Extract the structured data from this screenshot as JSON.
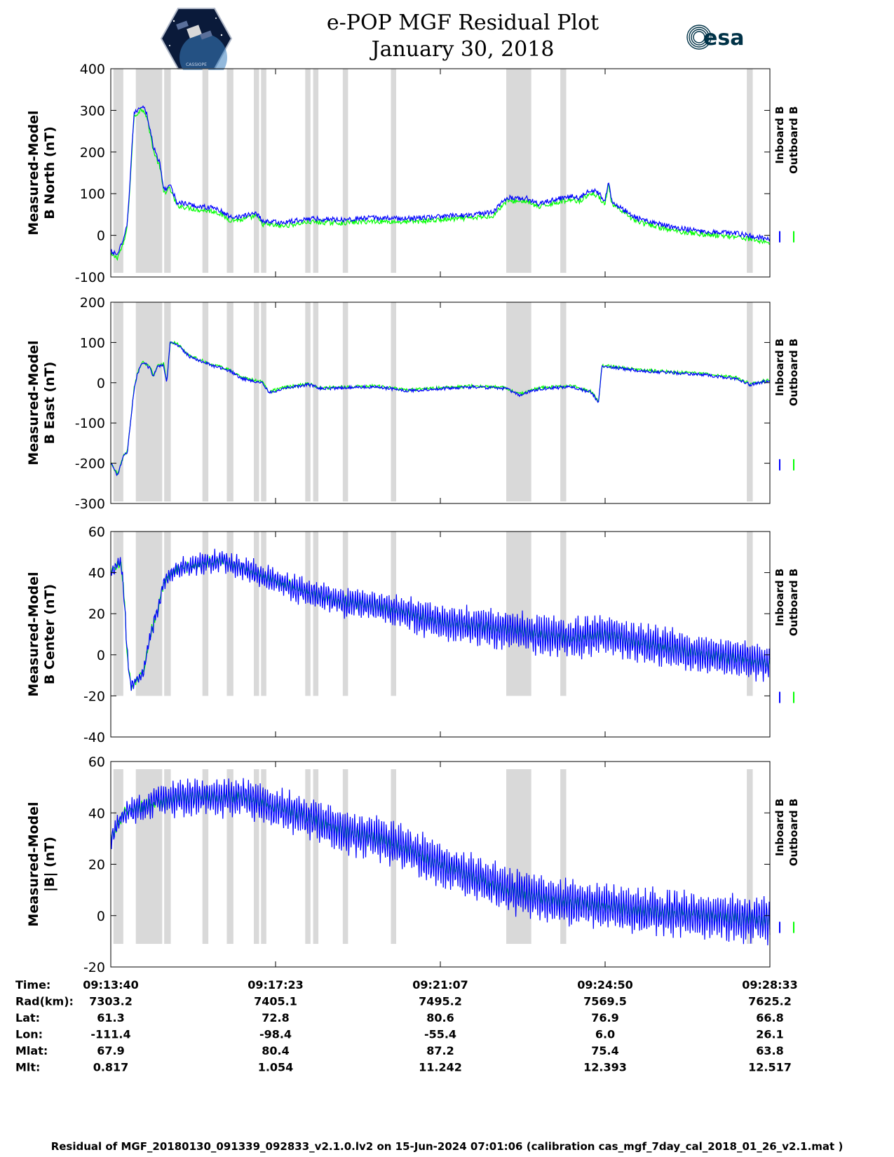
{
  "header": {
    "title": "e-POP MGF Residual Plot",
    "date": "January 30, 2018",
    "left_logo": "cassiope-mission-logo",
    "left_logo_text": "CASSIOPE",
    "right_logo": "esa-logo",
    "right_logo_text": "esa"
  },
  "colors": {
    "inboard": "#0000ff",
    "outboard": "#00ff00",
    "shade": "#d9d9d9"
  },
  "chart_data": {
    "type": "line",
    "x_range": [
      0,
      1
    ],
    "x_ticks": [
      0,
      0.25,
      0.5,
      0.75,
      1.0
    ],
    "shaded_intervals": [
      [
        0.004,
        0.019
      ],
      [
        0.038,
        0.078
      ],
      [
        0.081,
        0.091
      ],
      [
        0.139,
        0.148
      ],
      [
        0.176,
        0.186
      ],
      [
        0.217,
        0.225
      ],
      [
        0.228,
        0.236
      ],
      [
        0.295,
        0.303
      ],
      [
        0.307,
        0.315
      ],
      [
        0.352,
        0.36
      ],
      [
        0.425,
        0.433
      ],
      [
        0.6,
        0.638
      ],
      [
        0.682,
        0.691
      ],
      [
        0.965,
        0.974
      ]
    ],
    "legend": [
      "Inboard B",
      "Outboard B"
    ],
    "panels": [
      {
        "ylabel_1": "Measured-Model",
        "ylabel_2": "B North (nT)",
        "ylim": [
          -100,
          400
        ],
        "yticks": [
          -100,
          0,
          100,
          200,
          300,
          400
        ],
        "shade_range": [
          -90,
          400
        ],
        "noise": 6,
        "outboard_offset": -8,
        "curve": [
          [
            0,
            -40
          ],
          [
            0.01,
            -45
          ],
          [
            0.02,
            -10
          ],
          [
            0.025,
            30
          ],
          [
            0.03,
            150
          ],
          [
            0.035,
            290
          ],
          [
            0.045,
            310
          ],
          [
            0.05,
            310
          ],
          [
            0.055,
            290
          ],
          [
            0.065,
            210
          ],
          [
            0.075,
            170
          ],
          [
            0.08,
            110
          ],
          [
            0.09,
            120
          ],
          [
            0.1,
            80
          ],
          [
            0.13,
            70
          ],
          [
            0.16,
            65
          ],
          [
            0.18,
            45
          ],
          [
            0.2,
            45
          ],
          [
            0.22,
            55
          ],
          [
            0.23,
            35
          ],
          [
            0.26,
            30
          ],
          [
            0.3,
            40
          ],
          [
            0.35,
            38
          ],
          [
            0.4,
            42
          ],
          [
            0.45,
            40
          ],
          [
            0.5,
            45
          ],
          [
            0.55,
            50
          ],
          [
            0.58,
            55
          ],
          [
            0.6,
            90
          ],
          [
            0.63,
            90
          ],
          [
            0.65,
            75
          ],
          [
            0.67,
            85
          ],
          [
            0.7,
            95
          ],
          [
            0.71,
            90
          ],
          [
            0.72,
            100
          ],
          [
            0.73,
            110
          ],
          [
            0.74,
            100
          ],
          [
            0.75,
            85
          ],
          [
            0.755,
            130
          ],
          [
            0.76,
            85
          ],
          [
            0.77,
            70
          ],
          [
            0.8,
            40
          ],
          [
            0.85,
            20
          ],
          [
            0.9,
            10
          ],
          [
            0.95,
            5
          ],
          [
            1.0,
            -10
          ]
        ]
      },
      {
        "ylabel_1": "Measured-Model",
        "ylabel_2": "B East (nT)",
        "ylim": [
          -300,
          200
        ],
        "yticks": [
          -300,
          -200,
          -100,
          0,
          100,
          200
        ],
        "shade_range": [
          -295,
          200
        ],
        "noise": 4,
        "outboard_offset": 2,
        "curve": [
          [
            0,
            -200
          ],
          [
            0.01,
            -230
          ],
          [
            0.02,
            -180
          ],
          [
            0.025,
            -175
          ],
          [
            0.03,
            -100
          ],
          [
            0.035,
            -20
          ],
          [
            0.04,
            20
          ],
          [
            0.045,
            40
          ],
          [
            0.05,
            50
          ],
          [
            0.06,
            35
          ],
          [
            0.065,
            15
          ],
          [
            0.07,
            40
          ],
          [
            0.08,
            45
          ],
          [
            0.085,
            0
          ],
          [
            0.09,
            100
          ],
          [
            0.1,
            95
          ],
          [
            0.12,
            65
          ],
          [
            0.15,
            45
          ],
          [
            0.18,
            30
          ],
          [
            0.2,
            10
          ],
          [
            0.23,
            0
          ],
          [
            0.24,
            -25
          ],
          [
            0.26,
            -15
          ],
          [
            0.3,
            -5
          ],
          [
            0.32,
            -15
          ],
          [
            0.4,
            -10
          ],
          [
            0.45,
            -20
          ],
          [
            0.5,
            -15
          ],
          [
            0.55,
            -10
          ],
          [
            0.6,
            -15
          ],
          [
            0.62,
            -30
          ],
          [
            0.65,
            -15
          ],
          [
            0.7,
            -10
          ],
          [
            0.73,
            -25
          ],
          [
            0.74,
            -50
          ],
          [
            0.745,
            40
          ],
          [
            0.75,
            40
          ],
          [
            0.8,
            30
          ],
          [
            0.85,
            25
          ],
          [
            0.9,
            20
          ],
          [
            0.95,
            10
          ],
          [
            0.97,
            -5
          ],
          [
            1.0,
            5
          ]
        ]
      },
      {
        "ylabel_1": "Measured-Model",
        "ylabel_2": "B Center (nT)",
        "ylim": [
          -40,
          60
        ],
        "yticks": [
          -40,
          -20,
          0,
          20,
          40,
          60
        ],
        "shade_range": [
          -20,
          60
        ],
        "noise": 2,
        "outboard_offset": 0,
        "osc_amp": [
          [
            0,
            2
          ],
          [
            0.08,
            3
          ],
          [
            0.2,
            5
          ],
          [
            0.4,
            7
          ],
          [
            0.6,
            9
          ],
          [
            0.8,
            9
          ],
          [
            1.0,
            8
          ]
        ],
        "curve": [
          [
            0,
            40
          ],
          [
            0.015,
            45
          ],
          [
            0.02,
            30
          ],
          [
            0.025,
            0
          ],
          [
            0.03,
            -15
          ],
          [
            0.04,
            -12
          ],
          [
            0.05,
            -8
          ],
          [
            0.06,
            10
          ],
          [
            0.07,
            20
          ],
          [
            0.08,
            35
          ],
          [
            0.1,
            42
          ],
          [
            0.15,
            45
          ],
          [
            0.17,
            46
          ],
          [
            0.2,
            42
          ],
          [
            0.25,
            36
          ],
          [
            0.3,
            30
          ],
          [
            0.35,
            26
          ],
          [
            0.4,
            24
          ],
          [
            0.45,
            20
          ],
          [
            0.5,
            16
          ],
          [
            0.55,
            14
          ],
          [
            0.6,
            12
          ],
          [
            0.65,
            10
          ],
          [
            0.7,
            8
          ],
          [
            0.75,
            10
          ],
          [
            0.8,
            6
          ],
          [
            0.85,
            3
          ],
          [
            0.9,
            0
          ],
          [
            0.95,
            -2
          ],
          [
            1.0,
            -4
          ]
        ]
      },
      {
        "ylabel_1": "Measured-Model",
        "ylabel_2": "|B| (nT)",
        "ylim": [
          -20,
          60
        ],
        "yticks": [
          -20,
          0,
          20,
          40,
          60
        ],
        "shade_range": [
          -11,
          57
        ],
        "noise": 2,
        "outboard_offset": 0,
        "osc_amp": [
          [
            0,
            3
          ],
          [
            0.05,
            4
          ],
          [
            0.1,
            6
          ],
          [
            0.3,
            7
          ],
          [
            0.5,
            8
          ],
          [
            0.7,
            8
          ],
          [
            0.9,
            8
          ],
          [
            1.0,
            8
          ]
        ],
        "curve": [
          [
            0,
            30
          ],
          [
            0.01,
            35
          ],
          [
            0.02,
            40
          ],
          [
            0.05,
            42
          ],
          [
            0.07,
            45
          ],
          [
            0.08,
            44
          ],
          [
            0.1,
            46
          ],
          [
            0.15,
            46
          ],
          [
            0.2,
            46
          ],
          [
            0.25,
            42
          ],
          [
            0.3,
            38
          ],
          [
            0.35,
            33
          ],
          [
            0.4,
            30
          ],
          [
            0.45,
            26
          ],
          [
            0.5,
            20
          ],
          [
            0.55,
            15
          ],
          [
            0.6,
            10
          ],
          [
            0.65,
            7
          ],
          [
            0.7,
            5
          ],
          [
            0.75,
            4
          ],
          [
            0.8,
            2
          ],
          [
            0.85,
            1
          ],
          [
            0.9,
            0
          ],
          [
            0.95,
            -1
          ],
          [
            1.0,
            -2
          ]
        ]
      }
    ]
  },
  "info_table": {
    "row_labels": [
      "Time:",
      "Rad(km):",
      "Lat:",
      "Lon:",
      "Mlat:",
      "Mlt:"
    ],
    "columns": [
      [
        "09:13:40",
        "7303.2",
        "61.3",
        "-111.4",
        "67.9",
        "0.817"
      ],
      [
        "09:17:23",
        "7405.1",
        "72.8",
        "-98.4",
        "80.4",
        "1.054"
      ],
      [
        "09:21:07",
        "7495.2",
        "80.6",
        "-55.4",
        "87.2",
        "11.242"
      ],
      [
        "09:24:50",
        "7569.5",
        "76.9",
        "6.0",
        "75.4",
        "12.393"
      ],
      [
        "09:28:33",
        "7625.2",
        "66.8",
        "26.1",
        "63.8",
        "12.517"
      ]
    ]
  },
  "footer": "Residual of MGF_20180130_091339_092833_v2.1.0.lv2 on 15-Jun-2024 07:01:06 (calibration cas_mgf_7day_cal_2018_01_26_v2.1.mat )"
}
